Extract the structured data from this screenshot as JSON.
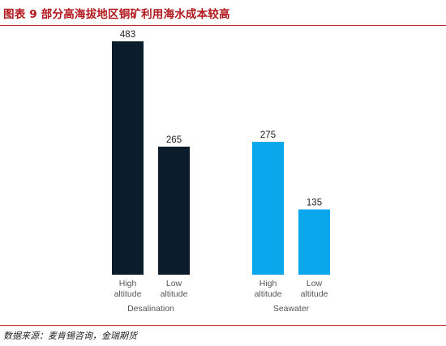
{
  "figure": {
    "title": "图表 9  部分高海拔地区铜矿利用海水成本较高",
    "source": "数据来源：麦肯锡咨询，金瑞期货"
  },
  "chart_data": {
    "type": "bar",
    "groups": [
      {
        "name": "Desalination",
        "color": "#0b1c2c",
        "bars": [
          {
            "category": "High altitude",
            "lines": [
              "High",
              "altitude"
            ],
            "value": 483
          },
          {
            "category": "Low altitude",
            "lines": [
              "Low",
              "altitude"
            ],
            "value": 265
          }
        ]
      },
      {
        "name": "Seawater",
        "color": "#0aa7ec",
        "bars": [
          {
            "category": "High altitude",
            "lines": [
              "High",
              "altitude"
            ],
            "value": 275
          },
          {
            "category": "Low altitude",
            "lines": [
              "Low",
              "altitude"
            ],
            "value": 135
          }
        ]
      }
    ],
    "ylim": [
      0,
      500
    ],
    "grid": false,
    "legend": "none",
    "title": "",
    "xlabel": "",
    "ylabel": ""
  }
}
